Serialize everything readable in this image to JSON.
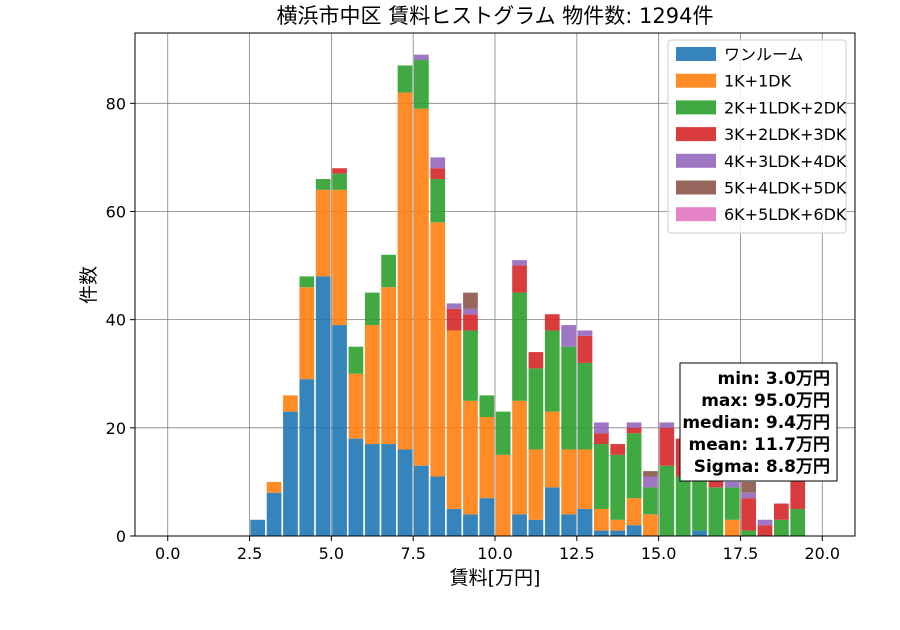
{
  "chart_data": {
    "type": "bar",
    "stacked": true,
    "title": "横浜市中区 賃料ヒストグラム 物件数: 1294件",
    "xlabel": "賃料[万円]",
    "ylabel": "件数",
    "xlim": [
      -1.0,
      21.0
    ],
    "ylim": [
      0,
      93
    ],
    "xticks": [
      0.0,
      2.5,
      5.0,
      7.5,
      10.0,
      12.5,
      15.0,
      17.5,
      20.0
    ],
    "xtick_labels": [
      "0.0",
      "2.5",
      "5.0",
      "7.5",
      "10.0",
      "12.5",
      "15.0",
      "17.5",
      "20.0"
    ],
    "yticks": [
      0,
      20,
      40,
      60,
      80
    ],
    "ytick_labels": [
      "0",
      "20",
      "40",
      "60",
      "80"
    ],
    "grid": true,
    "legend_position": "top-right",
    "bin_width": 0.5,
    "bin_starts": [
      2.5,
      3.0,
      3.5,
      4.0,
      4.5,
      5.0,
      5.5,
      6.0,
      6.5,
      7.0,
      7.5,
      8.0,
      8.5,
      9.0,
      9.5,
      10.0,
      10.5,
      11.0,
      11.5,
      12.0,
      12.5,
      13.0,
      13.5,
      14.0,
      14.5,
      15.0,
      15.5,
      16.0,
      16.5,
      17.0,
      17.5,
      18.0,
      18.5,
      19.0,
      19.5
    ],
    "series": [
      {
        "name": "ワンルーム",
        "color": "#1f77b4",
        "values": [
          3,
          8,
          23,
          29,
          48,
          39,
          18,
          17,
          17,
          16,
          13,
          11,
          5,
          4,
          7,
          0,
          4,
          3,
          9,
          4,
          5,
          1,
          1,
          2,
          0,
          0,
          0,
          1,
          0,
          0,
          0,
          0,
          0,
          0,
          0
        ]
      },
      {
        "name": "1K+1DK",
        "color": "#ff7f0e",
        "values": [
          0,
          2,
          3,
          17,
          16,
          25,
          12,
          22,
          29,
          66,
          66,
          47,
          33,
          21,
          15,
          15,
          21,
          13,
          14,
          12,
          11,
          4,
          2,
          5,
          4,
          0,
          0,
          0,
          0,
          3,
          0,
          0,
          0,
          0,
          0
        ]
      },
      {
        "name": "2K+1LDK+2DK",
        "color": "#2ca02c",
        "values": [
          0,
          0,
          0,
          2,
          2,
          3,
          5,
          6,
          6,
          5,
          9,
          8,
          0,
          13,
          4,
          8,
          20,
          15,
          15,
          19,
          16,
          12,
          12,
          12,
          5,
          13,
          11,
          10,
          9,
          6,
          1,
          0,
          3,
          5,
          0
        ]
      },
      {
        "name": "3K+2LDK+3DK",
        "color": "#d62728",
        "values": [
          0,
          0,
          0,
          0,
          0,
          1,
          0,
          0,
          0,
          0,
          0,
          2,
          4,
          3,
          0,
          0,
          5,
          3,
          3,
          0,
          5,
          2,
          2,
          1,
          0,
          7,
          7,
          6,
          5,
          0,
          6,
          2,
          3,
          8,
          0
        ]
      },
      {
        "name": "4K+3LDK+4DK",
        "color": "#9467bd",
        "values": [
          0,
          0,
          0,
          0,
          0,
          0,
          0,
          0,
          0,
          0,
          1,
          2,
          1,
          1,
          0,
          0,
          1,
          0,
          0,
          4,
          1,
          2,
          0,
          1,
          2,
          1,
          0,
          1,
          1,
          1,
          1,
          1,
          0,
          0,
          0
        ]
      },
      {
        "name": "5K+4LDK+5DK",
        "color": "#8c564b",
        "values": [
          0,
          0,
          0,
          0,
          0,
          0,
          0,
          0,
          0,
          0,
          0,
          0,
          0,
          3,
          0,
          0,
          0,
          0,
          0,
          0,
          0,
          0,
          0,
          0,
          1,
          0,
          0,
          0,
          0,
          0,
          2,
          0,
          0,
          0,
          0
        ]
      },
      {
        "name": "6K+5LDK+6DK",
        "color": "#e377c2",
        "values": [
          0,
          0,
          0,
          0,
          0,
          0,
          0,
          0,
          0,
          0,
          0,
          0,
          0,
          0,
          0,
          0,
          0,
          0,
          0,
          0,
          0,
          0,
          0,
          0,
          0,
          0,
          0,
          0,
          0,
          0,
          0,
          0,
          0,
          0,
          0
        ]
      }
    ],
    "annotations": {
      "stats_lines": [
        "min: 3.0万円",
        "max: 95.0万円",
        "median: 9.4万円",
        "mean: 11.7万円",
        "Sigma: 8.8万円"
      ]
    }
  }
}
